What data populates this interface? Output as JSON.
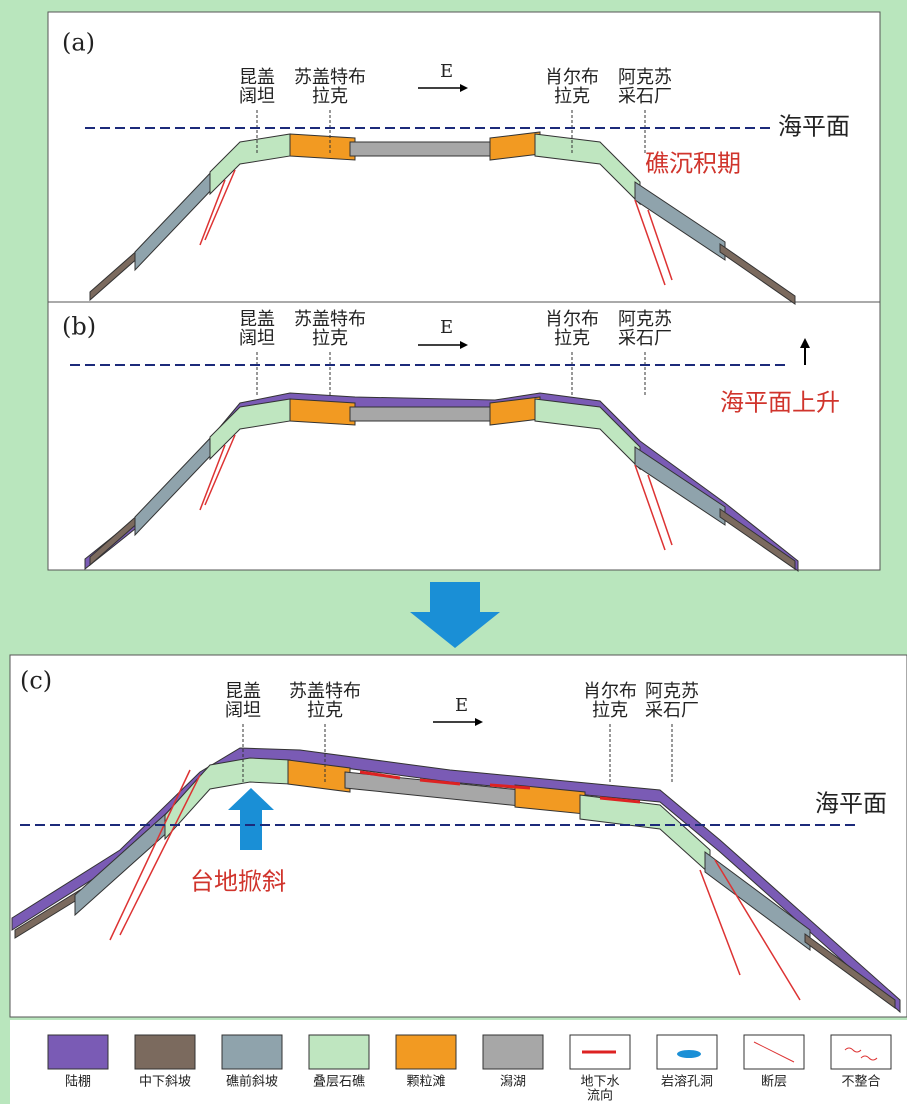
{
  "panels": [
    {
      "label": "(a)",
      "sites": [
        [
          "昆盖",
          "阔坦"
        ],
        [
          "苏盖特布",
          "拉克"
        ],
        [
          "肖尔布",
          "拉克"
        ],
        [
          "阿克苏",
          "采石厂"
        ]
      ],
      "direction": "E",
      "sea_level": "海平面",
      "stage": "礁沉积期"
    },
    {
      "label": "(b)",
      "sites": [
        [
          "昆盖",
          "阔坦"
        ],
        [
          "苏盖特布",
          "拉克"
        ],
        [
          "肖尔布",
          "拉克"
        ],
        [
          "阿克苏",
          "采石厂"
        ]
      ],
      "direction": "E",
      "stage": "海平面上升"
    },
    {
      "label": "(c)",
      "sites": [
        [
          "昆盖",
          "阔坦"
        ],
        [
          "苏盖特布",
          "拉克"
        ],
        [
          "肖尔布",
          "拉克"
        ],
        [
          "阿克苏",
          "采石厂"
        ]
      ],
      "direction": "E",
      "sea_level": "海平面",
      "stage": "台地掀斜"
    }
  ],
  "legend": [
    {
      "lines": [
        "陆棚"
      ]
    },
    {
      "lines": [
        "中下斜坡"
      ]
    },
    {
      "lines": [
        "礁前斜坡"
      ]
    },
    {
      "lines": [
        "叠层石礁"
      ]
    },
    {
      "lines": [
        "颗粒滩"
      ]
    },
    {
      "lines": [
        "潟湖"
      ]
    },
    {
      "lines": [
        "地下水",
        "流向"
      ]
    },
    {
      "lines": [
        "岩溶孔洞"
      ]
    },
    {
      "lines": [
        "断层"
      ]
    },
    {
      "lines": [
        "不整合"
      ]
    }
  ]
}
